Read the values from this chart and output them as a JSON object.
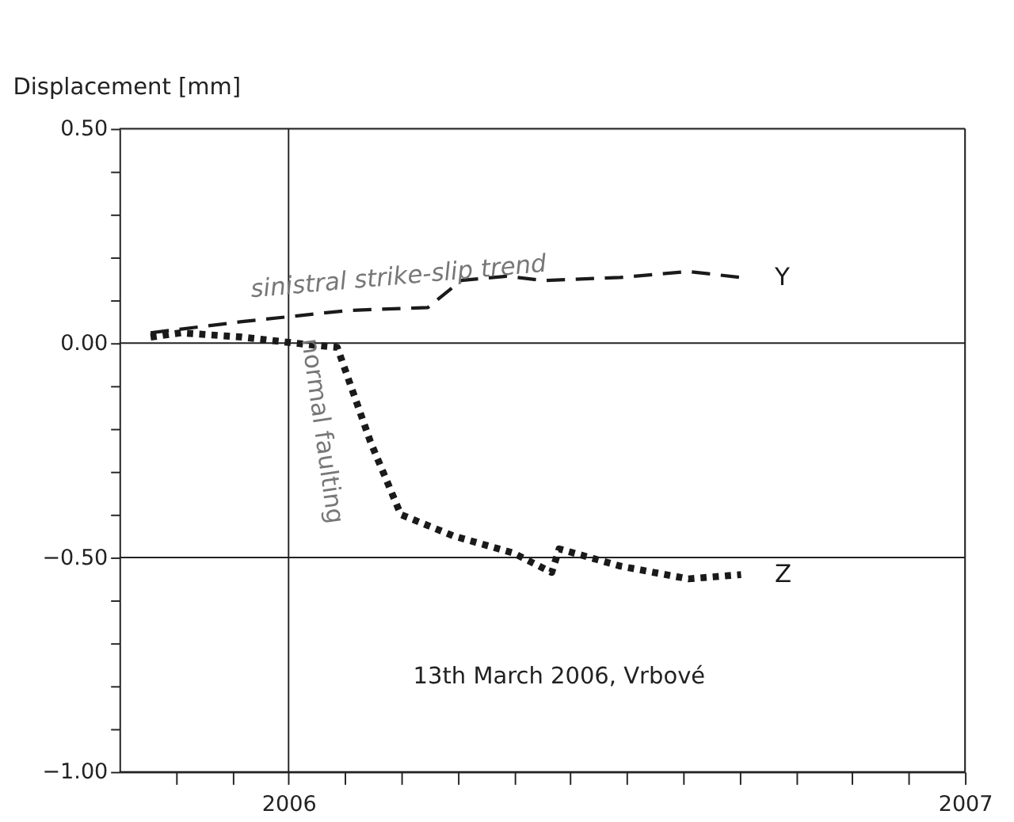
{
  "chart_data": {
    "type": "line",
    "ylabel": "Displacement [mm]",
    "xlim": [
      2005.75,
      2007
    ],
    "ylim": [
      -1.0,
      0.5
    ],
    "xticks": [
      {
        "value": 2005.8333,
        "label": null
      },
      {
        "value": 2005.9167,
        "label": null
      },
      2006,
      {
        "value": 2006.0833,
        "label": null
      },
      {
        "value": 2006.1667,
        "label": null
      },
      {
        "value": 2006.25,
        "label": null
      },
      {
        "value": 2006.3333,
        "label": null
      },
      {
        "value": 2006.4167,
        "label": null
      },
      {
        "value": 2006.5,
        "label": null
      },
      {
        "value": 2006.5833,
        "label": null
      },
      {
        "value": 2006.6667,
        "label": null
      },
      {
        "value": 2006.75,
        "label": null
      },
      {
        "value": 2006.8333,
        "label": null
      },
      {
        "value": 2006.9167,
        "label": null
      },
      2007
    ],
    "yticks": [
      {
        "value": -1.0,
        "label": "−1.00"
      },
      {
        "value": -0.9,
        "label": null
      },
      {
        "value": -0.8,
        "label": null
      },
      {
        "value": -0.7,
        "label": null
      },
      {
        "value": -0.6,
        "label": null
      },
      {
        "value": -0.5,
        "label": "−0.50"
      },
      {
        "value": -0.4,
        "label": null
      },
      {
        "value": -0.3,
        "label": null
      },
      {
        "value": -0.2,
        "label": null
      },
      {
        "value": -0.1,
        "label": null
      },
      {
        "value": 0.0,
        "label": "0.00"
      },
      {
        "value": 0.1,
        "label": null
      },
      {
        "value": 0.2,
        "label": null
      },
      {
        "value": 0.3,
        "label": null
      },
      {
        "value": 0.4,
        "label": null
      },
      {
        "value": 0.5,
        "label": "0.50"
      }
    ],
    "series": [
      {
        "name": "Y",
        "color": "#1a1a1a",
        "line_style": "dashed",
        "x": [
          2005.796,
          2005.931,
          2006.087,
          2006.206,
          2006.255,
          2006.322,
          2006.378,
          2006.49,
          2006.591,
          2006.669
        ],
        "values": [
          0.024,
          0.05,
          0.076,
          0.083,
          0.146,
          0.156,
          0.146,
          0.153,
          0.167,
          0.153
        ]
      },
      {
        "name": "Z",
        "color": "#1a1a1a",
        "line_style": "dotted",
        "x": [
          2005.796,
          2005.841,
          2005.931,
          2006.009,
          2006.072,
          2006.121,
          2006.166,
          2006.244,
          2006.333,
          2006.389,
          2006.4,
          2006.49,
          2006.591,
          2006.669
        ],
        "values": [
          0.014,
          0.024,
          0.014,
          0.0,
          -0.01,
          -0.23,
          -0.4,
          -0.45,
          -0.49,
          -0.535,
          -0.48,
          -0.52,
          -0.55,
          -0.54
        ]
      }
    ],
    "annotations": [
      "sinistral strike-slip trend",
      "normal faulting",
      "13th March 2006, Vrbové"
    ],
    "grid": true,
    "legend": false
  }
}
